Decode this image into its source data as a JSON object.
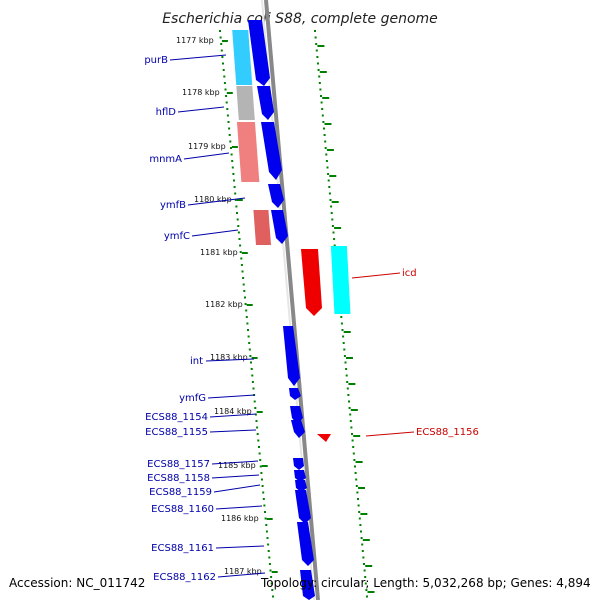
{
  "title": "Escherichia coli S88, complete genome",
  "footer": {
    "accession": "Accession: NC_011742",
    "topology": "Topology: circular; Length: 5,032,268 bp; Genes: 4,894"
  },
  "ticks": [
    {
      "label": "1177 kbp"
    },
    {
      "label": "1178 kbp"
    },
    {
      "label": "1179 kbp"
    },
    {
      "label": "1180 kbp"
    },
    {
      "label": "1181 kbp"
    },
    {
      "label": "1182 kbp"
    },
    {
      "label": "1183 kbp"
    },
    {
      "label": "1184 kbp"
    },
    {
      "label": "1185 kbp"
    },
    {
      "label": "1186 kbp"
    },
    {
      "label": "1187 kbp"
    }
  ],
  "left_labels": [
    {
      "name": "purB"
    },
    {
      "name": "hflD"
    },
    {
      "name": "mnmA"
    },
    {
      "name": "ymfB"
    },
    {
      "name": "ymfC"
    },
    {
      "name": "int"
    },
    {
      "name": "ymfG"
    },
    {
      "name": "ECS88_1154"
    },
    {
      "name": "ECS88_1155"
    },
    {
      "name": "ECS88_1157"
    },
    {
      "name": "ECS88_1158"
    },
    {
      "name": "ECS88_1159"
    },
    {
      "name": "ECS88_1160"
    },
    {
      "name": "ECS88_1161"
    },
    {
      "name": "ECS88_1162"
    }
  ],
  "right_labels": [
    {
      "name": "icd"
    },
    {
      "name": "ECS88_1156"
    }
  ],
  "colors": {
    "forward_gene": "#0000ee",
    "reverse_gene": "#ee0000",
    "cog_cyan_a": "#33ccff",
    "cog_cyan_b": "#00ffff",
    "cog_grey": "#b4b4b4",
    "cog_pink": "#f08080",
    "tick_green": "#008000",
    "label_blue": "#0000aa",
    "label_red": "#cc0000",
    "backbone": "#888888"
  }
}
